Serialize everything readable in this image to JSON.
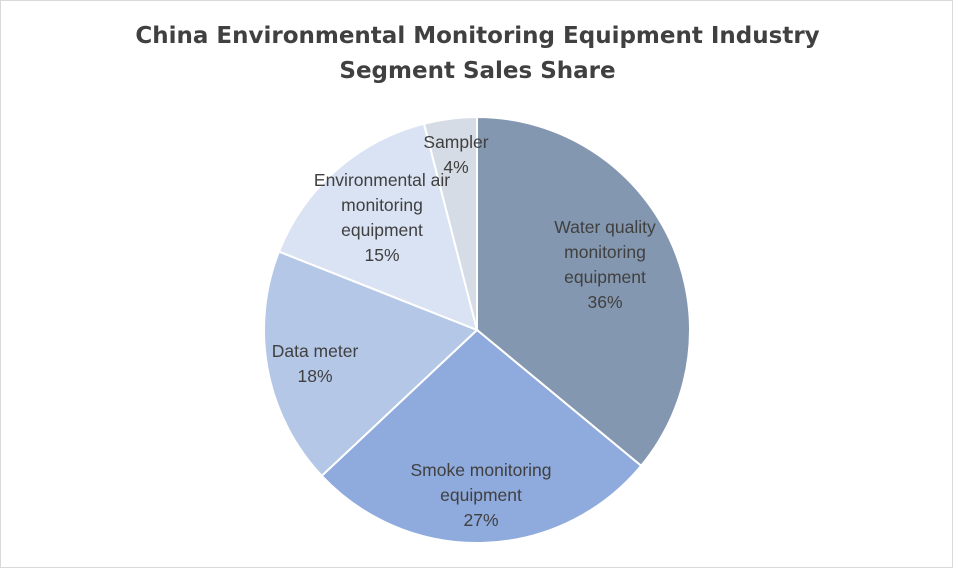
{
  "chart_data": {
    "type": "pie",
    "title_lines": [
      "China Environmental Monitoring Equipment Industry",
      "Segment Sales Share"
    ],
    "legend": "none",
    "slices": [
      {
        "label_lines": [
          "Water quality",
          "monitoring",
          "equipment"
        ],
        "pct_text": "36%",
        "value": 36,
        "color": "#8497b0"
      },
      {
        "label_lines": [
          "Smoke monitoring",
          "equipment"
        ],
        "pct_text": "27%",
        "value": 27,
        "color": "#8faadc"
      },
      {
        "label_lines": [
          "Data meter"
        ],
        "pct_text": "18%",
        "value": 18,
        "color": "#b4c7e7"
      },
      {
        "label_lines": [
          "Environmental air",
          "monitoring",
          "equipment"
        ],
        "pct_text": "15%",
        "value": 15,
        "color": "#dae3f3"
      },
      {
        "label_lines": [
          "Sampler"
        ],
        "pct_text": "4%",
        "value": 4,
        "color": "#d6dce5"
      }
    ]
  }
}
